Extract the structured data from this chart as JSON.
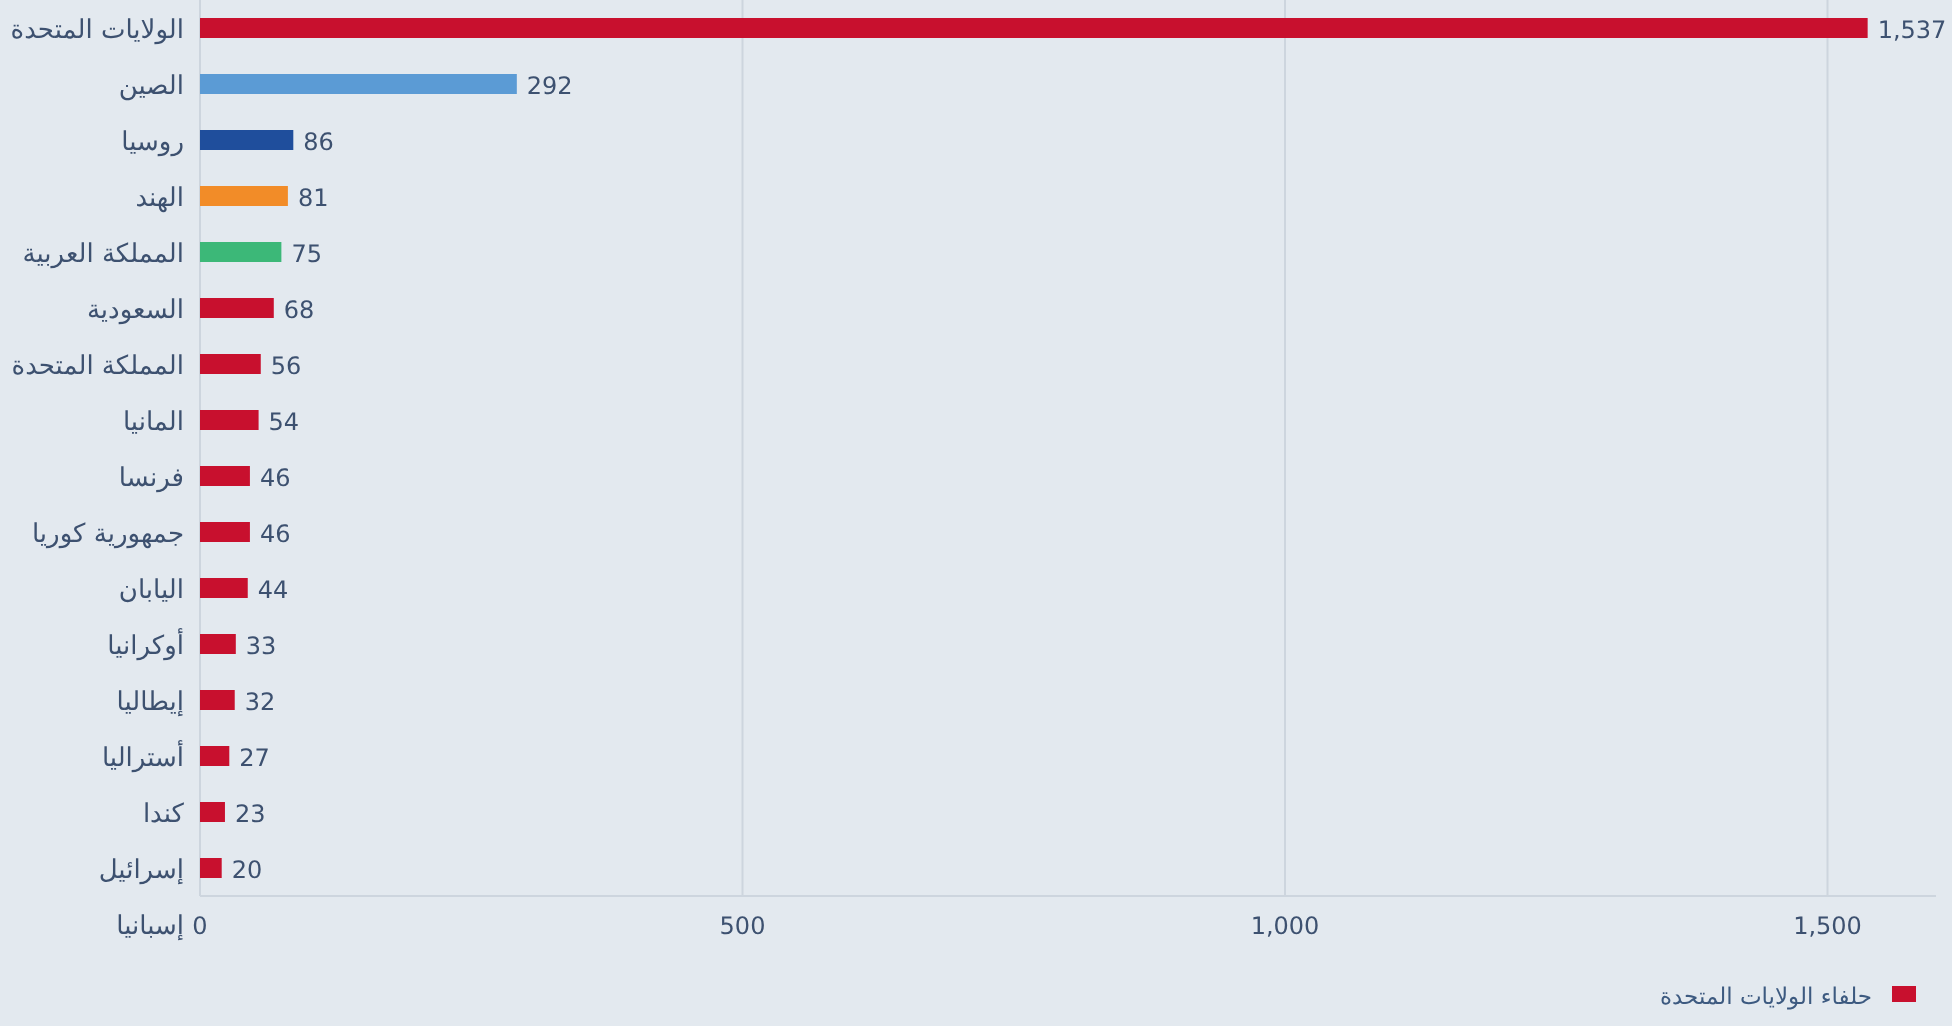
{
  "chart_data": {
    "type": "bar",
    "orientation": "horizontal",
    "categories": [
      "الولايات المتحدة",
      "الصين",
      "روسيا",
      "الهند",
      "المملكة العربية",
      "السعودية",
      "المملكة المتحدة",
      "المانيا",
      "فرنسا",
      "جمهورية كوريا",
      "اليابان",
      "أوكرانيا",
      "إيطاليا",
      "أستراليا",
      "كندا",
      "إسرائيل",
      "إسبانيا"
    ],
    "series": [
      {
        "name": "حلفاء الولايات المتحدة",
        "color": "#c8102e",
        "values": [
          1537,
          292,
          86,
          81,
          75,
          68,
          56,
          54,
          46,
          46,
          44,
          33,
          32,
          27,
          23,
          20,
          null
        ],
        "value_labels": [
          "1,537",
          "292",
          "86",
          "81",
          "75",
          "68",
          "56",
          "54",
          "46",
          "46",
          "44",
          "33",
          "32",
          "27",
          "23",
          "20",
          null
        ],
        "colors": [
          "#c8102e",
          "#5b9bd5",
          "#1f4e9c",
          "#f28c28",
          "#3cb878",
          "#c8102e",
          "#c8102e",
          "#c8102e",
          "#c8102e",
          "#c8102e",
          "#c8102e",
          "#c8102e",
          "#c8102e",
          "#c8102e",
          "#c8102e",
          "#c8102e",
          "#c8102e"
        ]
      }
    ],
    "xlim": [
      0,
      1600
    ],
    "xticks": [
      0,
      500,
      {
        "value": 1000,
        "label": "1,000"
      },
      {
        "value": 1500,
        "label": "1,500"
      }
    ],
    "grid": "x",
    "legend": "bottom right"
  }
}
